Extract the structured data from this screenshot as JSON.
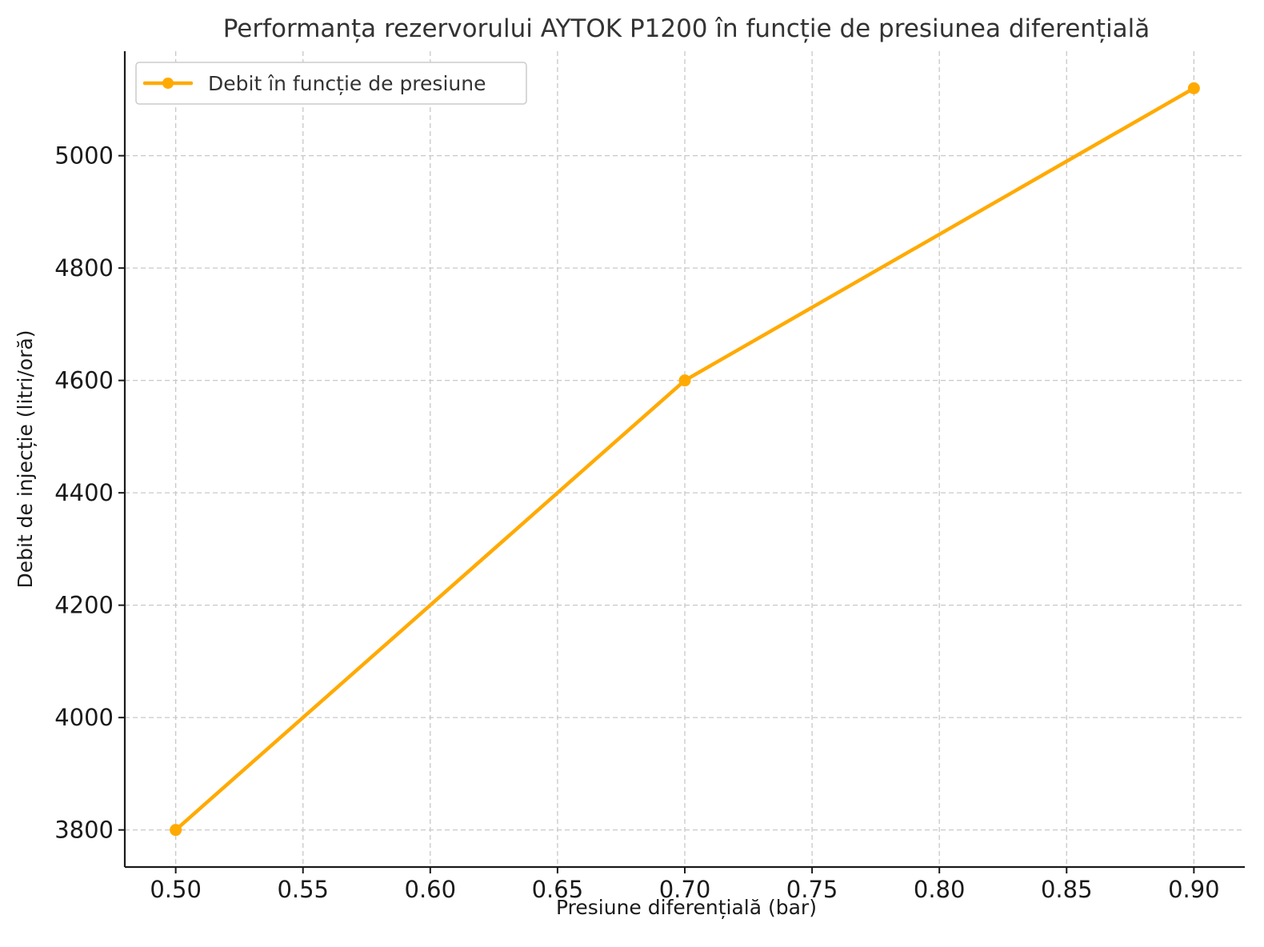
{
  "chart_data": {
    "type": "line",
    "title": "Performanța rezervorului AYTOK P1200 în funcție de presiunea diferențială",
    "xlabel": "Presiune diferențială (bar)",
    "ylabel": "Debit de injecție (litri/oră)",
    "xlim": [
      0.48,
      0.92
    ],
    "ylim": [
      3734,
      5186
    ],
    "xticks": [
      "0.50",
      "0.55",
      "0.60",
      "0.65",
      "0.70",
      "0.75",
      "0.80",
      "0.85",
      "0.90"
    ],
    "yticks": [
      "3800",
      "4000",
      "4200",
      "4400",
      "4600",
      "4800",
      "5000"
    ],
    "grid": true,
    "legend_position": "top-left",
    "series": [
      {
        "name": "Debit în funcție de presiune",
        "color": "#FFAA00",
        "marker": "circle",
        "x": [
          0.5,
          0.7,
          0.9
        ],
        "y": [
          3800,
          4600,
          5120
        ]
      }
    ]
  }
}
